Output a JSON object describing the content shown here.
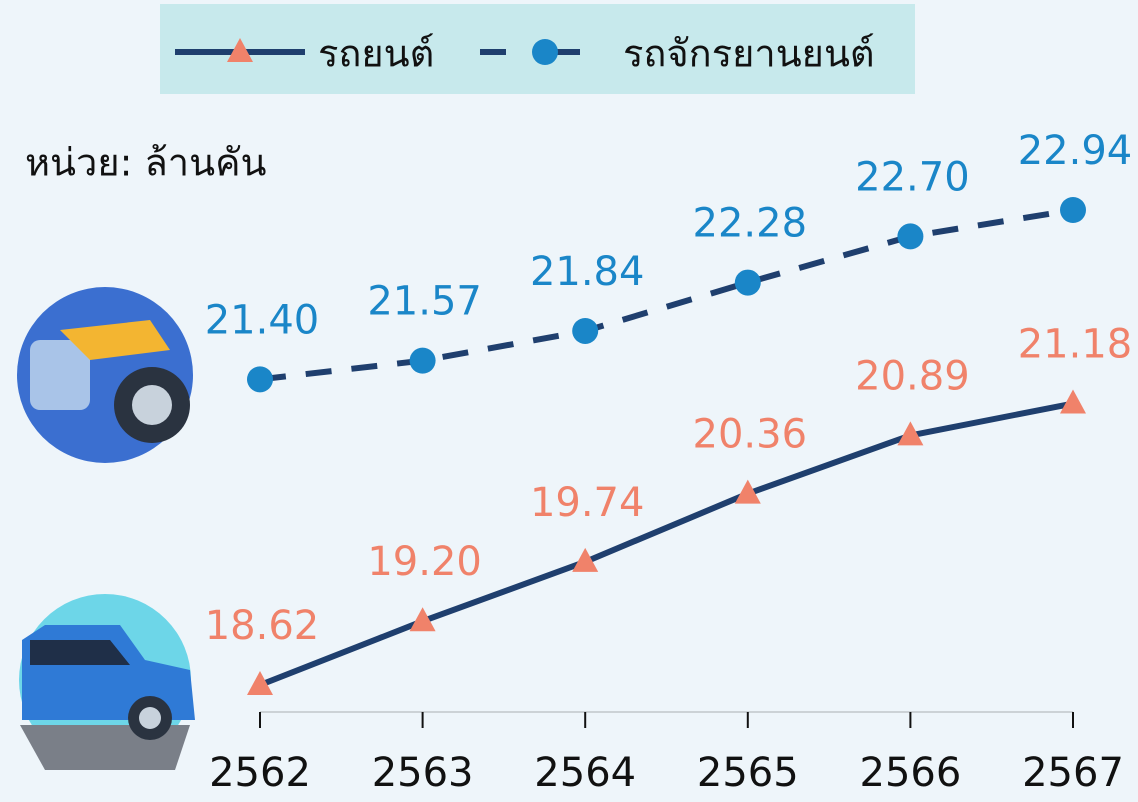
{
  "chart_data": {
    "type": "line",
    "unit_label": "หน่วย: ล้านคัน",
    "categories": [
      "2562",
      "2563",
      "2564",
      "2565",
      "2566",
      "2567"
    ],
    "series": [
      {
        "name": "รถยนต์",
        "color": "#1f3f6e",
        "marker_color": "#f0826a",
        "marker": "triangle",
        "dash": false,
        "values": [
          18.62,
          19.2,
          19.74,
          20.36,
          20.89,
          21.18
        ],
        "value_labels": [
          "18.62",
          "19.20",
          "19.74",
          "20.36",
          "20.89",
          "21.18"
        ]
      },
      {
        "name": "รถจักรยานยนต์",
        "color": "#1f3f6e",
        "marker_color": "#1a86c8",
        "marker": "circle",
        "dash": true,
        "values": [
          21.4,
          21.57,
          21.84,
          22.28,
          22.7,
          22.94
        ],
        "value_labels": [
          "21.40",
          "21.57",
          "21.84",
          "22.28",
          "22.70",
          "22.94"
        ]
      }
    ]
  }
}
